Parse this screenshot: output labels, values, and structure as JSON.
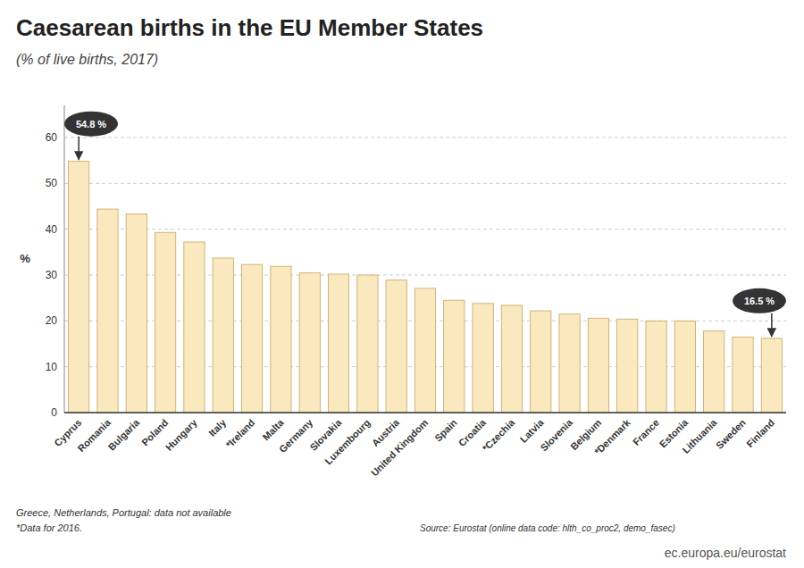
{
  "chart_data": {
    "type": "bar",
    "title": "Caesarean births in the EU  Member States",
    "subtitle": "(% of live births, 2017)",
    "y_label": "% ",
    "categories": [
      "Cyprus",
      "Romania",
      "Bulgaria",
      "Poland",
      "Hungary",
      "Italy",
      "*Ireland",
      "Malta",
      "Germany",
      "Slovakia",
      "Luxembourg",
      "Austria",
      "United Kingdom",
      "Spain",
      "Croatia",
      "*Czechia",
      "Latvia",
      "Slovenia",
      "Belgium",
      "*Denmark",
      "France",
      "Estonia",
      "Lithuania",
      "Sweden",
      "Finland"
    ],
    "values": [
      54.8,
      44.4,
      43.3,
      39.3,
      37.2,
      33.7,
      32.3,
      31.9,
      30.5,
      30.2,
      30.0,
      28.9,
      27.1,
      24.5,
      23.8,
      23.4,
      22.2,
      21.5,
      20.6,
      20.4,
      20.0,
      20.0,
      17.8,
      16.5,
      16.2
    ],
    "color": "#FAE8BE",
    "ylim": [
      0,
      67
    ],
    "yticks": [
      0,
      10,
      20,
      30,
      40,
      50,
      60
    ],
    "grid": true,
    "annotations": [
      "54.8 %",
      "16.5 %"
    ],
    "footnotes": [
      "Greece, Netherlands, Portugal: data not available",
      "*Data for 2016."
    ],
    "source": "Source: Eurostat (online data code: hlth_co_proc2, demo_fasec)",
    "credit": "ec.europa.eu/eurostat"
  }
}
